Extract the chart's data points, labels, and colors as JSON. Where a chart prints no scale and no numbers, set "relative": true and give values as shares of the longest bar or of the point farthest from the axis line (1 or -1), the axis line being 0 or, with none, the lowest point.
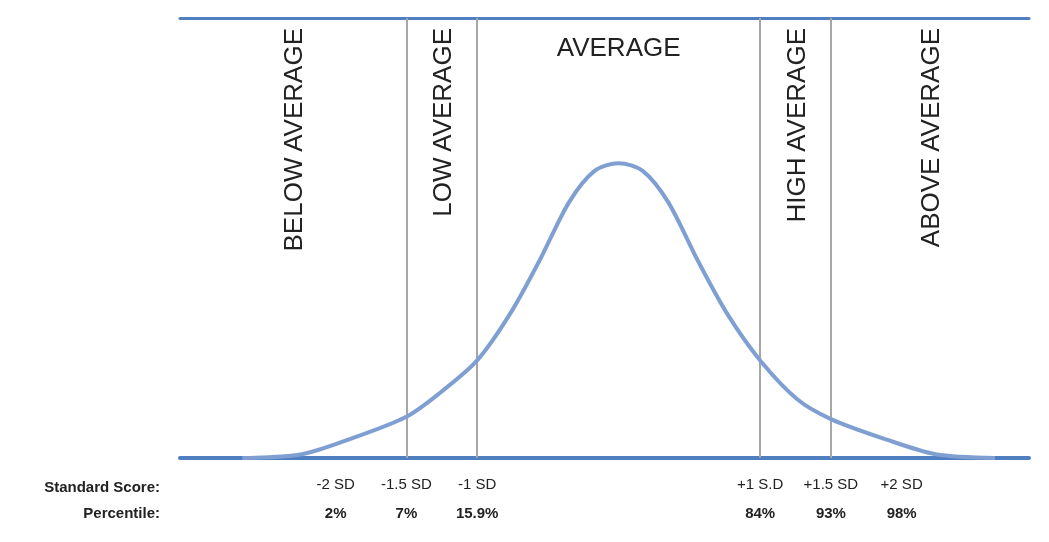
{
  "chart_data": {
    "type": "line",
    "relative": true,
    "xlabel": "Standard Score:",
    "color": "#7f9fd3",
    "marker": "none",
    "x": [
      -2.66,
      -2.24,
      -1.89,
      -1.5,
      -1.26,
      -1,
      -0.77,
      -0.56,
      -0.35,
      -0.17,
      0,
      0.17,
      0.35,
      0.56,
      0.77,
      1,
      1.26,
      1.5,
      1.89,
      2.24,
      2.66
    ],
    "values": [
      0,
      0.013,
      0.066,
      0.14,
      0.222,
      0.331,
      0.487,
      0.669,
      0.868,
      0.974,
      1,
      0.974,
      0.868,
      0.669,
      0.487,
      0.331,
      0.2,
      0.132,
      0.063,
      0.013,
      0
    ],
    "xlim": [
      -3.1,
      2.9
    ],
    "xticks": [
      {
        "value": -2,
        "label": "-2 SD"
      },
      {
        "value": -1.5,
        "label": "-1.5 SD"
      },
      {
        "value": -1,
        "label": "-1 SD"
      },
      {
        "value": 1,
        "label": "+1 S.D"
      },
      {
        "value": 1.5,
        "label": "+1.5 SD"
      },
      {
        "value": 2,
        "label": "+2 SD"
      }
    ],
    "ref_lines": [
      {
        "axis": "x",
        "value": -1.5,
        "color": "#a6a6a6"
      },
      {
        "axis": "x",
        "value": -1,
        "color": "#a6a6a6"
      },
      {
        "axis": "x",
        "value": 1,
        "color": "#a6a6a6"
      },
      {
        "axis": "x",
        "value": 1.5,
        "color": "#a6a6a6"
      }
    ],
    "annotations": [
      "Percentile:",
      "2%",
      "7%",
      "15.9%",
      "84%",
      "93%",
      "98%",
      "BELOW AVERAGE",
      "LOW AVERAGE",
      "AVERAGE",
      "HIGH AVERAGE",
      "ABOVE AVERAGE"
    ]
  }
}
